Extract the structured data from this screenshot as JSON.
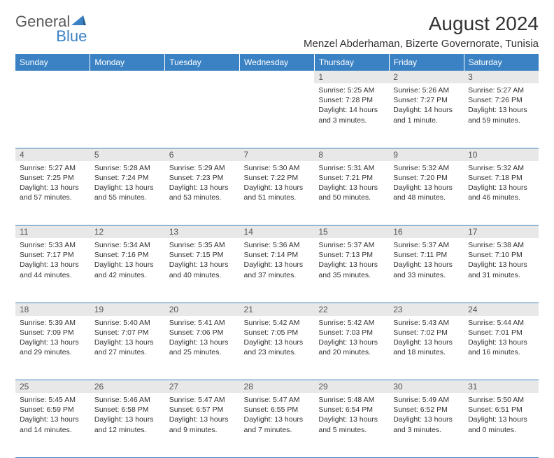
{
  "brand": {
    "part1": "General",
    "part2": "Blue"
  },
  "title": "August 2024",
  "location": "Menzel Abderhaman, Bizerte Governorate, Tunisia",
  "colors": {
    "header_bg": "#3b82c4",
    "header_fg": "#ffffff",
    "daynum_bg": "#e8e8e8",
    "rule": "#3b82c4"
  },
  "weekdays": [
    "Sunday",
    "Monday",
    "Tuesday",
    "Wednesday",
    "Thursday",
    "Friday",
    "Saturday"
  ],
  "weeks": [
    [
      null,
      null,
      null,
      null,
      {
        "n": "1",
        "sr": "5:25 AM",
        "ss": "7:28 PM",
        "dl": "14 hours and 3 minutes."
      },
      {
        "n": "2",
        "sr": "5:26 AM",
        "ss": "7:27 PM",
        "dl": "14 hours and 1 minute."
      },
      {
        "n": "3",
        "sr": "5:27 AM",
        "ss": "7:26 PM",
        "dl": "13 hours and 59 minutes."
      }
    ],
    [
      {
        "n": "4",
        "sr": "5:27 AM",
        "ss": "7:25 PM",
        "dl": "13 hours and 57 minutes."
      },
      {
        "n": "5",
        "sr": "5:28 AM",
        "ss": "7:24 PM",
        "dl": "13 hours and 55 minutes."
      },
      {
        "n": "6",
        "sr": "5:29 AM",
        "ss": "7:23 PM",
        "dl": "13 hours and 53 minutes."
      },
      {
        "n": "7",
        "sr": "5:30 AM",
        "ss": "7:22 PM",
        "dl": "13 hours and 51 minutes."
      },
      {
        "n": "8",
        "sr": "5:31 AM",
        "ss": "7:21 PM",
        "dl": "13 hours and 50 minutes."
      },
      {
        "n": "9",
        "sr": "5:32 AM",
        "ss": "7:20 PM",
        "dl": "13 hours and 48 minutes."
      },
      {
        "n": "10",
        "sr": "5:32 AM",
        "ss": "7:18 PM",
        "dl": "13 hours and 46 minutes."
      }
    ],
    [
      {
        "n": "11",
        "sr": "5:33 AM",
        "ss": "7:17 PM",
        "dl": "13 hours and 44 minutes."
      },
      {
        "n": "12",
        "sr": "5:34 AM",
        "ss": "7:16 PM",
        "dl": "13 hours and 42 minutes."
      },
      {
        "n": "13",
        "sr": "5:35 AM",
        "ss": "7:15 PM",
        "dl": "13 hours and 40 minutes."
      },
      {
        "n": "14",
        "sr": "5:36 AM",
        "ss": "7:14 PM",
        "dl": "13 hours and 37 minutes."
      },
      {
        "n": "15",
        "sr": "5:37 AM",
        "ss": "7:13 PM",
        "dl": "13 hours and 35 minutes."
      },
      {
        "n": "16",
        "sr": "5:37 AM",
        "ss": "7:11 PM",
        "dl": "13 hours and 33 minutes."
      },
      {
        "n": "17",
        "sr": "5:38 AM",
        "ss": "7:10 PM",
        "dl": "13 hours and 31 minutes."
      }
    ],
    [
      {
        "n": "18",
        "sr": "5:39 AM",
        "ss": "7:09 PM",
        "dl": "13 hours and 29 minutes."
      },
      {
        "n": "19",
        "sr": "5:40 AM",
        "ss": "7:07 PM",
        "dl": "13 hours and 27 minutes."
      },
      {
        "n": "20",
        "sr": "5:41 AM",
        "ss": "7:06 PM",
        "dl": "13 hours and 25 minutes."
      },
      {
        "n": "21",
        "sr": "5:42 AM",
        "ss": "7:05 PM",
        "dl": "13 hours and 23 minutes."
      },
      {
        "n": "22",
        "sr": "5:42 AM",
        "ss": "7:03 PM",
        "dl": "13 hours and 20 minutes."
      },
      {
        "n": "23",
        "sr": "5:43 AM",
        "ss": "7:02 PM",
        "dl": "13 hours and 18 minutes."
      },
      {
        "n": "24",
        "sr": "5:44 AM",
        "ss": "7:01 PM",
        "dl": "13 hours and 16 minutes."
      }
    ],
    [
      {
        "n": "25",
        "sr": "5:45 AM",
        "ss": "6:59 PM",
        "dl": "13 hours and 14 minutes."
      },
      {
        "n": "26",
        "sr": "5:46 AM",
        "ss": "6:58 PM",
        "dl": "13 hours and 12 minutes."
      },
      {
        "n": "27",
        "sr": "5:47 AM",
        "ss": "6:57 PM",
        "dl": "13 hours and 9 minutes."
      },
      {
        "n": "28",
        "sr": "5:47 AM",
        "ss": "6:55 PM",
        "dl": "13 hours and 7 minutes."
      },
      {
        "n": "29",
        "sr": "5:48 AM",
        "ss": "6:54 PM",
        "dl": "13 hours and 5 minutes."
      },
      {
        "n": "30",
        "sr": "5:49 AM",
        "ss": "6:52 PM",
        "dl": "13 hours and 3 minutes."
      },
      {
        "n": "31",
        "sr": "5:50 AM",
        "ss": "6:51 PM",
        "dl": "13 hours and 0 minutes."
      }
    ]
  ]
}
